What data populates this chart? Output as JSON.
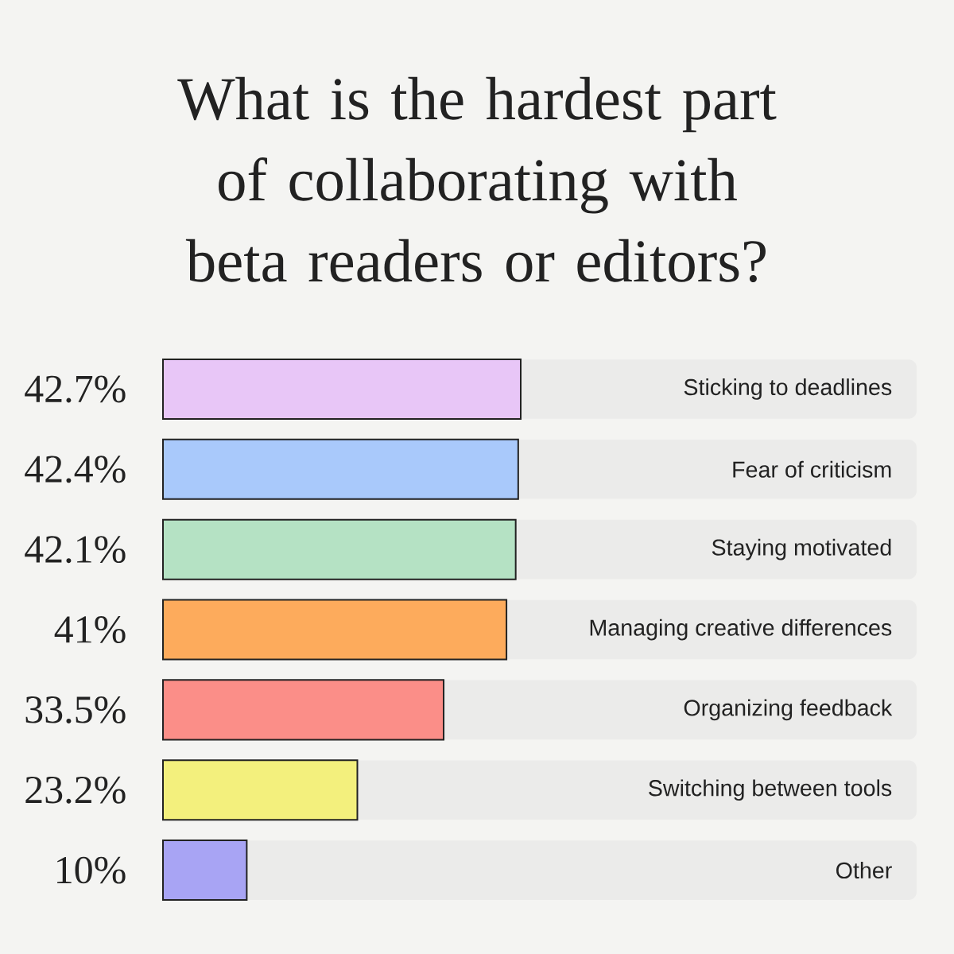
{
  "chart_data": {
    "type": "bar",
    "orientation": "horizontal",
    "title": "What is the hardest part of collaborating with beta readers or editors?",
    "categories": [
      "Sticking to deadlines",
      "Fear of criticism",
      "Staying motivated",
      "Managing creative differences",
      "Organizing feedback",
      "Switching between tools",
      "Other"
    ],
    "values": [
      42.7,
      42.4,
      42.1,
      41,
      33.5,
      23.2,
      10
    ],
    "value_labels": [
      "42.7%",
      "42.4%",
      "42.1%",
      "41%",
      "33.5%",
      "23.2%",
      "10%"
    ],
    "colors": [
      "#e8c6f7",
      "#a9c9fb",
      "#b5e2c4",
      "#fdab5c",
      "#fb8e88",
      "#f3f07d",
      "#a8a4f4"
    ]
  }
}
